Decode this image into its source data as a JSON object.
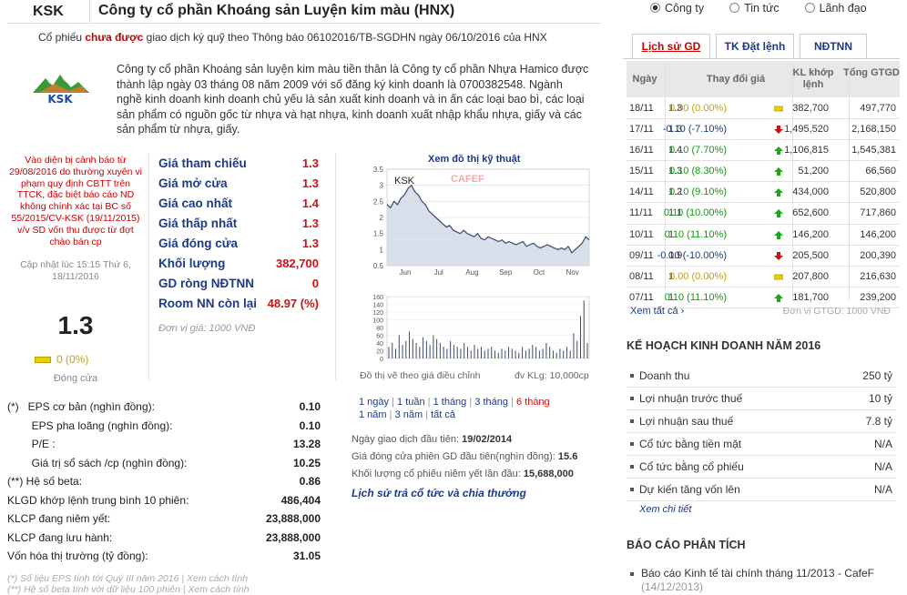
{
  "header": {
    "code": "KSK",
    "company": "Công ty cổ phần Khoáng sản Luyện kim màu (HNX)"
  },
  "notice": {
    "prefix": "Cổ phiếu ",
    "highlight": "chưa được",
    "suffix": " giao dịch ký quỹ theo Thông báo 06102016/TB-SGDHN ngày 06/10/2016 của HNX"
  },
  "logo_text": "KSK",
  "intro": "Công ty cổ phần Khoáng sản luyện kim màu tiền thân là Công ty cổ phần Nhựa Hamico được thành lập ngày 03 tháng 08 năm 2009 với số đăng ký kinh doanh là 0700382548. Ngành nghề kinh doanh kinh doanh chủ yếu là sản xuất kinh doanh và in ấn các loại bao bì, các loại sản phẩm có nguồn gốc từ nhựa và hạt nhựa, kinh doanh xuất nhập khẩu nhựa, giấy và các sản phẩm từ nhựa, giấy.",
  "warning": "Vào diện bị cảnh báo từ 29/08/2016 do thường xuyên vi phạm quy định CBTT trên TTCK, đặc biệt báo cáo ND không chính xác tại BC số 55/2015/CV-KSK (19/11/2015) v/v SD vốn thu được từ đợt chào bán cp",
  "updated": "Cập nhật lúc 15:15 Thứ 6, 18/11/2016",
  "price": "1.3",
  "change": "0 (0%)",
  "close_label": "Đóng cửa",
  "prices": [
    {
      "label": "Giá tham chiếu",
      "value": "1.3"
    },
    {
      "label": "Giá mở cửa",
      "value": "1.3"
    },
    {
      "label": "Giá cao nhất",
      "value": "1.4"
    },
    {
      "label": "Giá thấp nhất",
      "value": "1.3"
    },
    {
      "label": "Giá đóng cửa",
      "value": "1.3"
    },
    {
      "label": "Khối lượng",
      "value": "382,700"
    },
    {
      "label": "GD ròng NĐTNN",
      "value": "0"
    },
    {
      "label": "Room NN còn lại",
      "value": "48.97 (%)"
    }
  ],
  "price_unit": "Đơn vị giá: 1000 VNĐ",
  "chart_title": "Xem đồ thị kỹ thuật",
  "chart_foot_left": "Đồ thị vẽ theo giá điều chỉnh",
  "chart_foot_right": "đv KLg: 10,000cp",
  "periods": [
    "1 ngày",
    "1 tuần",
    "1 tháng",
    "3 tháng",
    "6 tháng",
    "1 năm",
    "3 năm",
    "tất cả"
  ],
  "info": [
    {
      "label": "Ngày giao dịch đầu tiên: ",
      "value": "19/02/2014"
    },
    {
      "label": "Giá đóng cửa phiên GD đầu tiên(nghìn đồng): ",
      "value": "15.6"
    },
    {
      "label": "Khối lượng cổ phiếu niêm yết lần đầu: ",
      "value": "15,688,000"
    }
  ],
  "history_link": "Lịch sử trả cổ tức và chia thưởng",
  "fin": [
    {
      "label": "(*)   EPS cơ bản (nghìn đồng):",
      "value": "0.10"
    },
    {
      "label": "        EPS pha loãng (nghìn đồng):",
      "value": "0.10"
    },
    {
      "label": "        P/E :",
      "value": "13.28"
    },
    {
      "label": "        Giá trị sổ sách /cp (nghìn đồng):",
      "value": "10.25"
    },
    {
      "label": "(**) Hệ số beta:",
      "value": "0.86"
    },
    {
      "label": "KLGD khớp lệnh trung bình 10 phiên:",
      "value": "486,404"
    },
    {
      "label": "KLCP đang niêm yết:",
      "value": "23,888,000"
    },
    {
      "label": "KLCP đang lưu hành:",
      "value": "23,888,000"
    },
    {
      "label": "Vốn hóa thị trường (tỷ đồng):",
      "value": "31.05"
    }
  ],
  "fin_notes": [
    "(*) Số liệu EPS tính tới Quý III năm 2016 | Xem cách tính",
    "(**) Hệ số beta tính với dữ liệu 100 phiên | Xem cách tính"
  ],
  "radios": [
    "Công ty",
    "Tin tức",
    "Lãnh đạo"
  ],
  "tabs": [
    "Lịch sử GD",
    "TK Đặt lệnh",
    "NĐTNN"
  ],
  "table": {
    "headers": [
      "Ngày",
      "Thay đổi giá",
      "KL khớp lệnh",
      "Tổng GTGD"
    ],
    "rows": [
      {
        "d": "18/11",
        "p": "1.3",
        "c": "0.00 (0.00%)",
        "t": "flat",
        "k": "382,700",
        "g": "497,770"
      },
      {
        "d": "17/11",
        "p": "1.3",
        "c": "-0.10 (-7.10%)",
        "t": "down",
        "k": "1,495,520",
        "g": "2,168,150"
      },
      {
        "d": "16/11",
        "p": "1.4",
        "c": "0.10 (7.70%)",
        "t": "up",
        "k": "1,106,815",
        "g": "1,545,381"
      },
      {
        "d": "15/11",
        "p": "1.3",
        "c": "0.10 (8.30%)",
        "t": "up",
        "k": "51,200",
        "g": "66,560"
      },
      {
        "d": "14/11",
        "p": "1.2",
        "c": "0.10 (9.10%)",
        "t": "up",
        "k": "434,000",
        "g": "520,800"
      },
      {
        "d": "11/11",
        "p": "1.1",
        "c": "0.10 (10.00%)",
        "t": "up",
        "k": "652,600",
        "g": "717,860"
      },
      {
        "d": "10/11",
        "p": "1",
        "c": "0.10 (11.10%)",
        "t": "up",
        "k": "146,200",
        "g": "146,200"
      },
      {
        "d": "09/11",
        "p": "0.9",
        "c": "-0.10 (-10.00%)",
        "t": "down",
        "k": "205,500",
        "g": "200,390"
      },
      {
        "d": "08/11",
        "p": "1",
        "c": "0.00 (0.00%)",
        "t": "flat",
        "k": "207,800",
        "g": "216,630"
      },
      {
        "d": "07/11",
        "p": "1",
        "c": "0.10 (11.10%)",
        "t": "up",
        "k": "181,700",
        "g": "239,200"
      }
    ]
  },
  "see_all": "Xem tất cả",
  "table_unit": "Đơn vị GTGD: 1000 VNĐ",
  "plan_title": "KẾ HOẠCH KINH DOANH NĂM 2016",
  "plan": [
    {
      "label": "Doanh thu",
      "value": "250 tỷ"
    },
    {
      "label": "Lợi nhuận trước thuế",
      "value": "10 tỷ"
    },
    {
      "label": "Lợi nhuận sau thuế",
      "value": "7.8 tỷ"
    },
    {
      "label": "Cổ tức bằng tiền mặt",
      "value": "N/A"
    },
    {
      "label": "Cổ tức bằng cổ phiếu",
      "value": "N/A"
    },
    {
      "label": "Dự kiến tăng vốn lên",
      "value": "N/A"
    }
  ],
  "plan_more": "Xem chi tiết",
  "report_title": "BÁO CÁO PHÂN TÍCH",
  "report": {
    "title": "Báo cáo Kinh tế tài chính tháng 11/2013 - CafeF",
    "date": "(14/12/2013)"
  },
  "chart_data": {
    "type": "line",
    "title": "KSK",
    "watermark": "CAFEF",
    "x_ticks": [
      "Jun",
      "Jul",
      "Aug",
      "Sep",
      "Oct",
      "Nov"
    ],
    "y_ticks": [
      0.5,
      1,
      1.5,
      2,
      2.5,
      3,
      3.5
    ],
    "ylim": [
      0.5,
      3.5
    ],
    "price": [
      2.4,
      2.3,
      2.5,
      2.4,
      2.6,
      2.7,
      2.9,
      3.0,
      2.8,
      2.7,
      2.5,
      2.4,
      2.2,
      2.1,
      2.0,
      1.9,
      1.8,
      1.7,
      1.75,
      1.6,
      1.55,
      1.5,
      1.6,
      1.5,
      1.45,
      1.4,
      1.5,
      1.35,
      1.3,
      1.4,
      1.35,
      1.3,
      1.25,
      1.3,
      1.2,
      1.25,
      1.2,
      1.15,
      1.2,
      1.25,
      1.1,
      1.15,
      1.2,
      1.1,
      1.05,
      1.1,
      1.15,
      1.1,
      1.05,
      1.0,
      1.05,
      1.0,
      1.1,
      0.9,
      1.0,
      1.1,
      1.2,
      1.4,
      1.3
    ],
    "vol_ticks": [
      0,
      20,
      40,
      60,
      80,
      100,
      120,
      140,
      160
    ],
    "volume": [
      30,
      40,
      25,
      60,
      35,
      45,
      70,
      50,
      40,
      30,
      55,
      45,
      35,
      60,
      50,
      40,
      30,
      25,
      45,
      35,
      30,
      25,
      40,
      30,
      20,
      35,
      25,
      30,
      20,
      25,
      30,
      20,
      15,
      25,
      20,
      30,
      25,
      20,
      15,
      30,
      20,
      25,
      35,
      30,
      20,
      25,
      40,
      30,
      20,
      15,
      25,
      20,
      30,
      20,
      65,
      45,
      110,
      150,
      40
    ]
  }
}
